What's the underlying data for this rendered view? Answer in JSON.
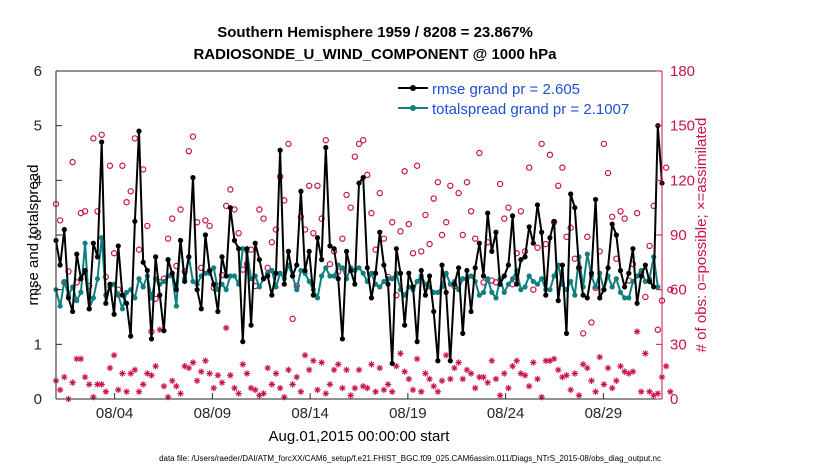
{
  "chart_data": {
    "type": "line",
    "title": "Southern Hemisphere 1959 / 8208 = 23.867%",
    "subtitle": "RADIOSONDE_U_WIND_COMPONENT @ 1000 hPa",
    "ylabel_left": "rmse and totalspread",
    "ylabel_right": "# of obs: o=possible; ×=assimilated",
    "xlabel": "Aug.01,2015 00:00:00 start",
    "footnote": "data file: /Users/raeder/DAI/ATM_forcXX/CAM6_setup/f.e21.FHIST_BGC.f09_025.CAM6assim.011/Diags_NTrS_2015-08/obs_diag_output.nc",
    "x_range_days": [
      1,
      32
    ],
    "ylim_left": [
      0,
      6
    ],
    "ylim_right": [
      0,
      180
    ],
    "x_tick_days": [
      4,
      9,
      14,
      19,
      24,
      29
    ],
    "x_tick_labels": [
      "08/04",
      "08/09",
      "08/14",
      "08/19",
      "08/24",
      "08/29"
    ],
    "y_ticks_left": [
      "0",
      "1",
      "2",
      "3",
      "4",
      "5",
      "6"
    ],
    "y_ticks_right": [
      "0",
      "30",
      "60",
      "90",
      "120",
      "150",
      "180"
    ],
    "colors": {
      "rmse": "#000000",
      "spread": "#0f7f7f",
      "obs": "#c8124f",
      "legend_text": "#1f4fd6"
    },
    "legend": [
      {
        "name": "rmse grand pr = 2.605",
        "color": "#000000"
      },
      {
        "name": "totalspread grand pr = 2.1007",
        "color": "#0f7f7f"
      }
    ],
    "series": [
      {
        "name": "rmse",
        "axis": "left",
        "values": [
          2.9,
          2.45,
          3.1,
          1.85,
          1.6,
          2.65,
          2.2,
          2.35,
          1.65,
          2.85,
          2.6,
          4.7,
          1.75,
          2.1,
          1.55,
          2.8,
          1.9,
          1.75,
          1.15,
          3.25,
          4.9,
          2.5,
          2.35,
          1.1,
          2.6,
          1.9,
          1.25,
          2.55,
          2.3,
          2.0,
          2.9,
          2.15,
          2.6,
          4.05,
          2.0,
          1.65,
          3.0,
          2.35,
          2.1,
          1.6,
          2.6,
          2.25,
          3.5,
          2.9,
          2.75,
          1.05,
          2.75,
          1.35,
          2.85,
          2.55,
          2.2,
          2.25,
          1.9,
          2.3,
          4.55,
          2.1,
          2.7,
          2.25,
          2.45,
          3.8,
          2.35,
          2.7,
          1.9,
          2.95,
          2.55,
          4.6,
          2.8,
          2.75,
          2.2,
          1.1,
          2.7,
          2.35,
          2.1,
          3.95,
          4.05,
          2.4,
          1.85,
          2.3,
          3.05,
          2.45,
          2.1,
          0.65,
          2.75,
          2.3,
          1.35,
          2.3,
          2.05,
          1.05,
          2.35,
          1.9,
          2.25,
          1.6,
          0.7,
          2.45,
          1.95,
          0.7,
          2.1,
          2.4,
          1.2,
          2.35,
          1.6,
          2.4,
          2.85,
          2.25,
          3.4,
          2.7,
          3.05,
          2.1,
          2.25,
          2.45,
          3.35,
          2.1,
          2.55,
          2.6,
          3.15,
          2.85,
          3.55,
          3.05,
          1.9,
          2.95,
          3.25,
          1.8,
          2.45,
          1.2,
          3.75,
          3.5,
          2.4,
          1.9,
          1.85,
          2.3,
          3.65,
          1.85,
          2.0,
          2.4,
          3.2,
          3.0,
          2.35,
          2.05,
          2.3,
          2.75,
          1.75,
          2.25,
          2.45,
          2.15,
          2.05,
          5.0,
          3.95
        ]
      },
      {
        "name": "totalspread",
        "axis": "left",
        "values": [
          2.0,
          1.7,
          2.15,
          1.9,
          2.05,
          1.8,
          1.95,
          2.85,
          1.65,
          1.85,
          2.2,
          2.95,
          1.9,
          2.05,
          2.1,
          1.9,
          1.65,
          1.95,
          2.0,
          1.85,
          2.2,
          2.05,
          2.25,
          1.85,
          2.2,
          2.1,
          2.15,
          2.25,
          2.25,
          1.7,
          2.9,
          2.2,
          2.6,
          2.15,
          2.1,
          2.25,
          2.3,
          2.3,
          2.4,
          2.0,
          2.1,
          2.0,
          2.25,
          2.25,
          2.1,
          2.75,
          2.7,
          2.2,
          2.25,
          2.05,
          2.2,
          2.3,
          2.35,
          2.05,
          2.3,
          2.2,
          2.45,
          2.25,
          2.0,
          2.35,
          2.3,
          2.15,
          2.0,
          1.85,
          2.25,
          2.4,
          2.25,
          2.25,
          2.45,
          2.4,
          2.2,
          2.4,
          2.35,
          2.4,
          2.3,
          2.15,
          2.3,
          2.1,
          2.05,
          2.15,
          2.2,
          2.2,
          2.3,
          2.0,
          1.9,
          2.05,
          2.0,
          2.15,
          2.25,
          2.1,
          2.05,
          1.95,
          1.95,
          2.05,
          2.3,
          2.1,
          2.15,
          2.0,
          2.2,
          2.2,
          2.25,
          2.15,
          1.9,
          1.95,
          2.2,
          1.95,
          1.85,
          2.2,
          1.95,
          2.1,
          2.2,
          2.35,
          2.0,
          2.05,
          2.25,
          2.15,
          2.1,
          2.2,
          2.0,
          2.0,
          2.25,
          2.45,
          2.1,
          2.0,
          2.15,
          1.9,
          2.6,
          2.05,
          2.65,
          2.25,
          2.05,
          2.3,
          2.0,
          2.25,
          2.05,
          2.2,
          1.95,
          1.85,
          1.85,
          2.15,
          2.25,
          2.35,
          2.15,
          2.2,
          2.6,
          2.05
        ]
      },
      {
        "name": "obs possible",
        "axis": "right",
        "values": [
          107,
          98,
          64,
          70,
          130,
          64,
          102,
          103,
          62,
          143,
          103,
          145,
          67,
          128,
          80,
          60,
          128,
          108,
          114,
          143,
          82,
          126,
          95,
          37,
          55,
          64,
          66,
          88,
          99,
          73,
          104,
          70,
          136,
          144,
          97,
          72,
          98,
          95,
          61,
          62,
          68,
          106,
          115,
          104,
          91,
          71,
          74,
          82,
          62,
          104,
          99,
          72,
          86,
          93,
          122,
          109,
          140,
          44,
          62,
          100,
          93,
          117,
          91,
          117,
          99,
          142,
          74,
          81,
          70,
          88,
          112,
          105,
          133,
          140,
          142,
          123,
          102,
          82,
          113,
          88,
          67,
          97,
          57,
          92,
          125,
          96,
          80,
          128,
          81,
          101,
          85,
          110,
          119,
          90,
          97,
          117,
          62,
          113,
          90,
          119,
          103,
          88,
          135,
          64,
          86,
          65,
          64,
          118,
          99,
          105,
          63,
          80,
          103,
          81,
          127,
          60,
          83,
          140,
          85,
          134,
          97,
          117,
          127,
          89,
          94,
          77,
          72,
          36,
          89,
          42,
          61,
          81,
          140,
          124,
          100,
          77,
          103,
          99,
          65,
          74,
          102,
          69,
          56,
          84,
          106,
          38,
          54,
          127,
          60
        ]
      },
      {
        "name": "obs assimilated",
        "axis": "right",
        "values": [
          10,
          5,
          12,
          0,
          9,
          22,
          22,
          12,
          8,
          1,
          8,
          8,
          4,
          17,
          24,
          5,
          14,
          4,
          14,
          16,
          4,
          8,
          14,
          13,
          18,
          38,
          7,
          1,
          10,
          7,
          3,
          18,
          17,
          20,
          10,
          15,
          21,
          14,
          6,
          13,
          9,
          39,
          13,
          6,
          3,
          19,
          14,
          6,
          5,
          2,
          3,
          17,
          8,
          14,
          6,
          1,
          16,
          8,
          12,
          4,
          24,
          16,
          21,
          5,
          20,
          3,
          8,
          16,
          19,
          6,
          16,
          2,
          6,
          16,
          7,
          6,
          19,
          4,
          17,
          5,
          8,
          4,
          18,
          25,
          15,
          11,
          5,
          22,
          4,
          14,
          11,
          7,
          4,
          10,
          24,
          11,
          17,
          20,
          11,
          16,
          14,
          6,
          12,
          12,
          9,
          21,
          11,
          2,
          14,
          6,
          18,
          21,
          14,
          13,
          7,
          20,
          11,
          1,
          21,
          21,
          22,
          16,
          12,
          13,
          5,
          14,
          2,
          19,
          17,
          10,
          4,
          23,
          8,
          17,
          6,
          10,
          18,
          15,
          14,
          15,
          37,
          4,
          25,
          4,
          2,
          3,
          12,
          18,
          4
        ]
      }
    ]
  }
}
